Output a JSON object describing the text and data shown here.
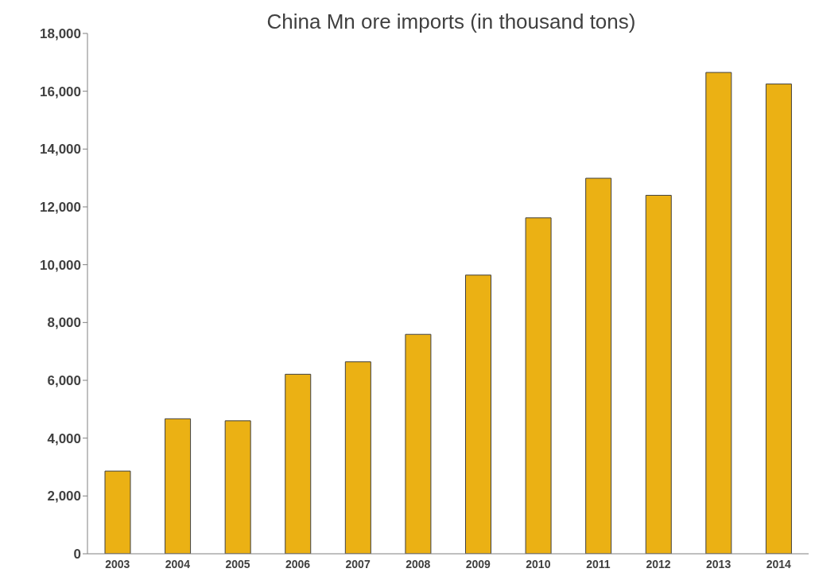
{
  "chart_data": {
    "type": "bar",
    "title": "China Mn ore imports (in thousand tons)",
    "categories": [
      "2003",
      "2004",
      "2005",
      "2006",
      "2007",
      "2008",
      "2009",
      "2010",
      "2011",
      "2012",
      "2013",
      "2014"
    ],
    "values": [
      2860,
      4670,
      4600,
      6210,
      6640,
      7590,
      9640,
      11620,
      12990,
      12400,
      16650,
      16250
    ],
    "color": "#ebb114",
    "ylim": [
      0,
      18000
    ],
    "yticks": [
      {
        "value": 0,
        "label": "0"
      },
      {
        "value": 2000,
        "label": "2,000"
      },
      {
        "value": 4000,
        "label": "4,000"
      },
      {
        "value": 6000,
        "label": "6,000"
      },
      {
        "value": 8000,
        "label": "8,000"
      },
      {
        "value": 10000,
        "label": "10,000"
      },
      {
        "value": 12000,
        "label": "12,000"
      },
      {
        "value": 14000,
        "label": "14,000"
      },
      {
        "value": 16000,
        "label": "16,000"
      },
      {
        "value": 18000,
        "label": "18,000"
      }
    ]
  }
}
